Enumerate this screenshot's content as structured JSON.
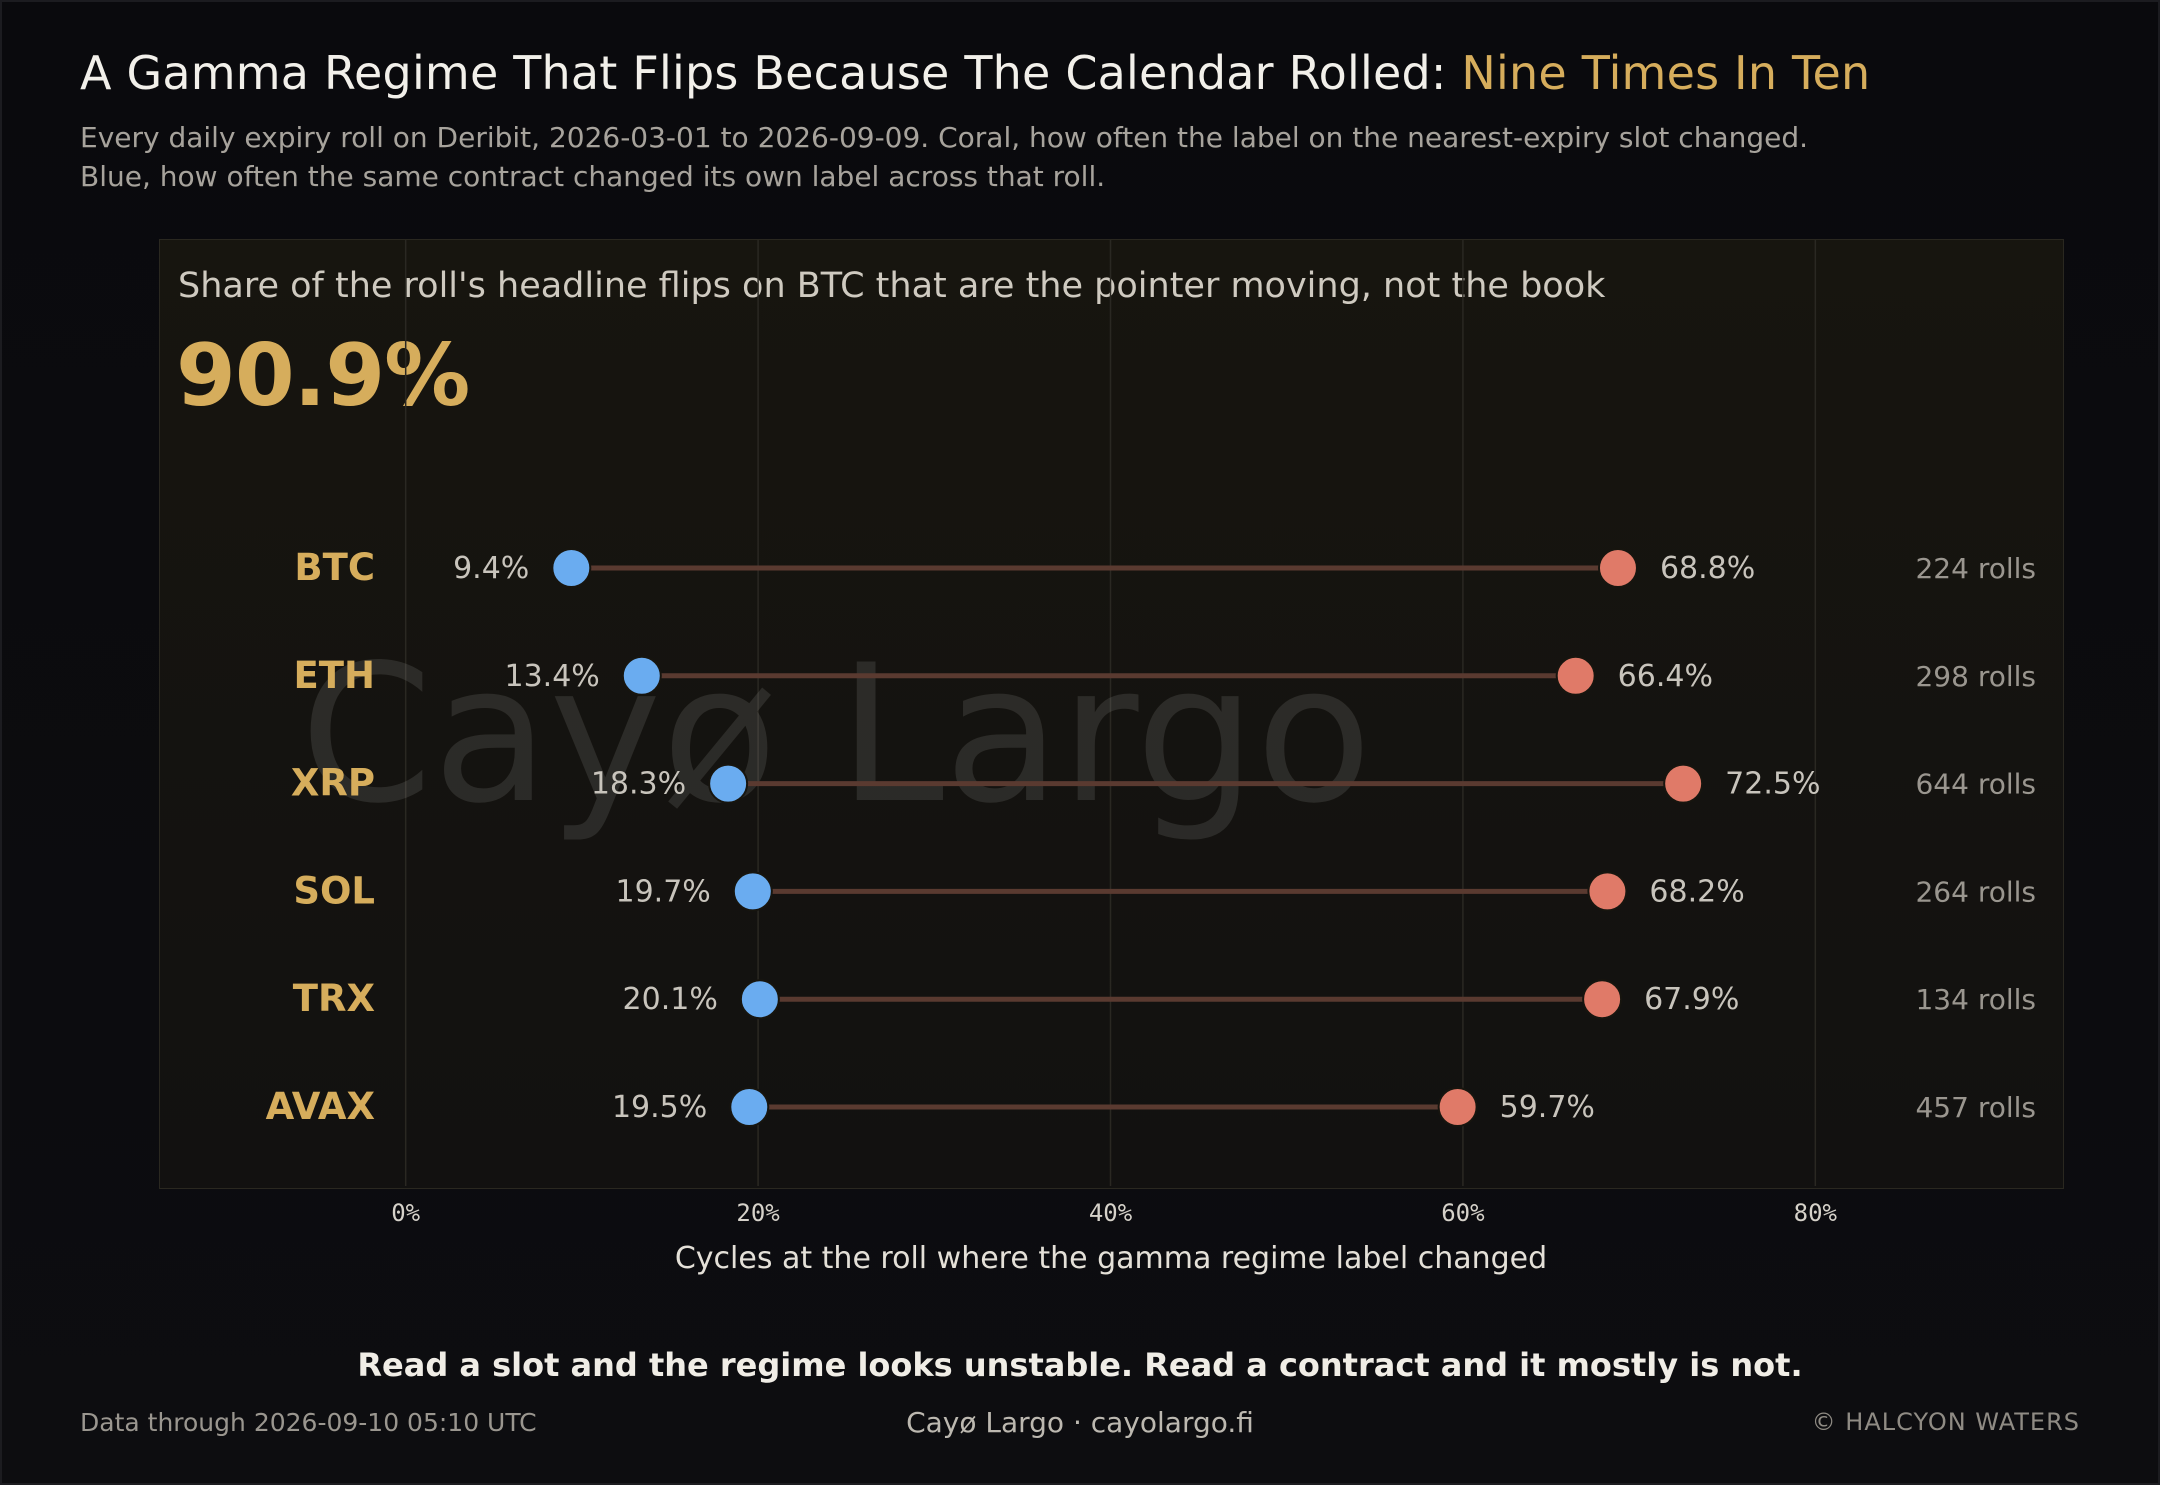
{
  "header": {
    "title_main": "A Gamma Regime That Flips Because The Calendar Rolled: ",
    "title_highlight": "Nine Times In Ten",
    "subtitle_line1": "Every daily expiry roll on Deribit, 2026-03-01 to 2026-09-09. Coral, how often the label on the nearest-expiry slot changed.",
    "subtitle_line2": "Blue, how often the same contract changed its own label across that roll."
  },
  "kpi": {
    "label": "Share of the roll's headline flips on BTC that are the pointer moving, not the book",
    "value": "90.9%"
  },
  "watermark": "Cayø Largo",
  "caption": "Read a slot and the regime looks unstable. Read a contract and it mostly is not.",
  "footer": {
    "data_through": "Data through 2026-09-10 05:10 UTC",
    "brand": "Cayø Largo  ·  cayolargo.fi",
    "copyright": "© HALCYON WATERS"
  },
  "colors": {
    "coral": "#e07a68",
    "blue": "#6aacf0",
    "gold": "#d6ad5c",
    "connector": "#5a3a30"
  },
  "chart_data": {
    "type": "dumbbell",
    "xlabel": "Cycles at the roll where the gamma regime label changed",
    "xlim": [
      -14,
      94
    ],
    "xticks": [
      0,
      20,
      40,
      60,
      80
    ],
    "tick_labels": [
      "0%",
      "20%",
      "40%",
      "60%",
      "80%"
    ],
    "grid": true,
    "categories": [
      "BTC",
      "ETH",
      "XRP",
      "SOL",
      "TRX",
      "AVAX"
    ],
    "series": [
      {
        "color": "#6aacf0",
        "values": [
          9.4,
          13.4,
          18.3,
          19.7,
          20.1,
          19.5
        ],
        "labels": [
          "9.4%",
          "13.4%",
          "18.3%",
          "19.7%",
          "20.1%",
          "19.5%"
        ]
      },
      {
        "color": "#e07a68",
        "values": [
          68.8,
          66.4,
          72.5,
          68.2,
          67.9,
          59.7
        ],
        "labels": [
          "68.8%",
          "66.4%",
          "72.5%",
          "68.2%",
          "67.9%",
          "59.7%"
        ]
      }
    ],
    "roll_counts": [
      "224 rolls",
      "298 rolls",
      "644 rolls",
      "264 rolls",
      "134 rolls",
      "457 rolls"
    ]
  }
}
